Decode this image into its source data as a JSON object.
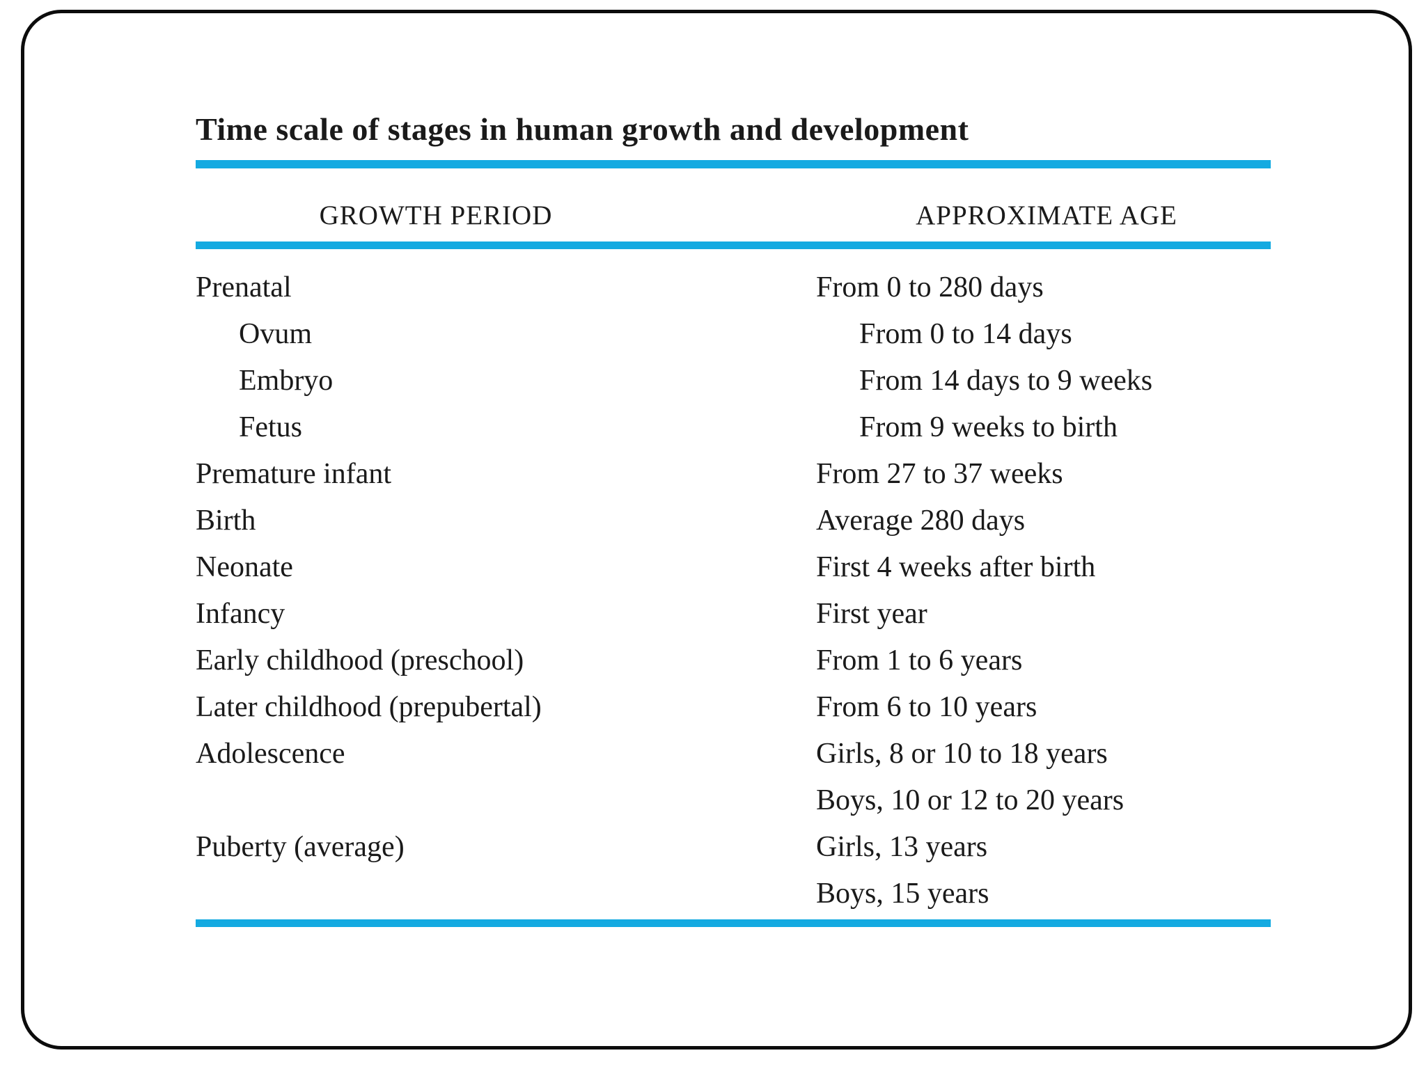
{
  "colors": {
    "accent_blue": "#14aae1",
    "frame_border": "#0c0c0c",
    "text": "#1a1a1a",
    "background": "#ffffff"
  },
  "table": {
    "title": "Time scale of stages in human growth and development",
    "columns": {
      "period_header": "GROWTH PERIOD",
      "age_header": "APPROXIMATE AGE"
    },
    "rows": [
      {
        "period": "Prenatal",
        "age": "From 0 to 280 days",
        "indent": false
      },
      {
        "period": "Ovum",
        "age": "From 0 to 14 days",
        "indent": true
      },
      {
        "period": "Embryo",
        "age": "From 14 days to 9 weeks",
        "indent": true
      },
      {
        "period": "Fetus",
        "age": "From 9 weeks to birth",
        "indent": true
      },
      {
        "period": "Premature infant",
        "age": "From 27 to 37 weeks",
        "indent": false
      },
      {
        "period": "Birth",
        "age": "Average 280 days",
        "indent": false
      },
      {
        "period": "Neonate",
        "age": "First 4 weeks after birth",
        "indent": false
      },
      {
        "period": "Infancy",
        "age": "First year",
        "indent": false
      },
      {
        "period": "Early childhood (preschool)",
        "age": "From 1 to 6 years",
        "indent": false
      },
      {
        "period": "Later childhood (prepubertal)",
        "age": "From 6 to 10 years",
        "indent": false
      },
      {
        "period": "Adolescence",
        "age": "Girls, 8 or 10 to 18 years",
        "indent": false
      },
      {
        "period": "",
        "age": "Boys, 10 or 12 to 20 years",
        "indent": false
      },
      {
        "period": "Puberty (average)",
        "age": "Girls, 13 years",
        "indent": false
      },
      {
        "period": "",
        "age": "Boys, 15 years",
        "indent": false
      }
    ]
  }
}
